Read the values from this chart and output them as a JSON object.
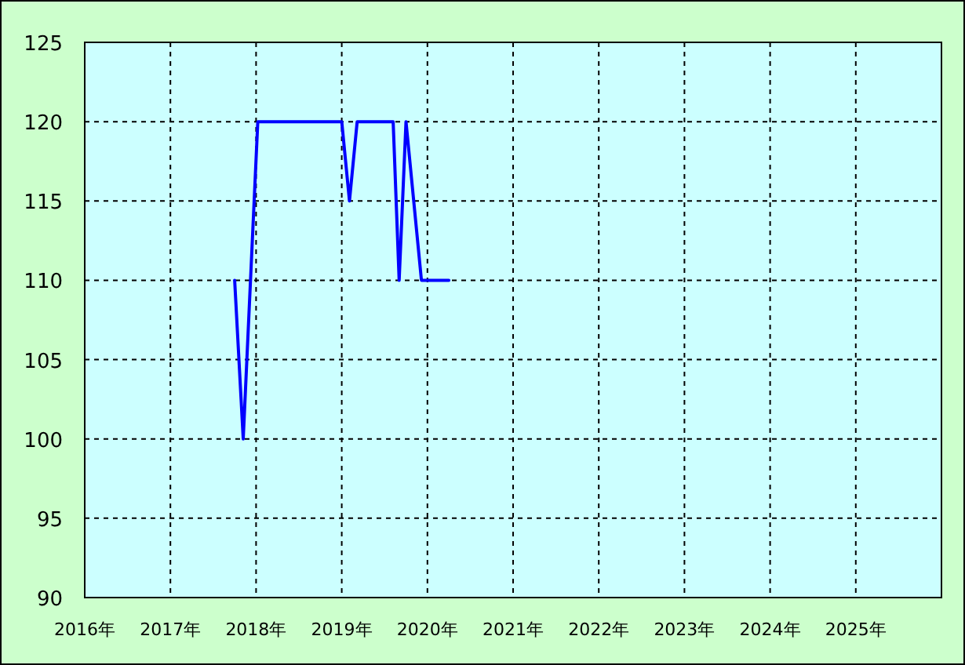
{
  "chart_data": {
    "type": "line",
    "x": [
      2017.75,
      2017.85,
      2018.02,
      2019.0,
      2019.09,
      2019.18,
      2019.6,
      2019.67,
      2019.75,
      2019.93,
      2020.25
    ],
    "series": [
      {
        "color": "#0000ff",
        "values": [
          110,
          100,
          120,
          120,
          115,
          120,
          120,
          110,
          120,
          110,
          110
        ]
      }
    ],
    "xlim": [
      2016,
      2026
    ],
    "xticks": [
      {
        "value": 2016,
        "label": "2016年"
      },
      {
        "value": 2017,
        "label": "2017年"
      },
      {
        "value": 2018,
        "label": "2018年"
      },
      {
        "value": 2019,
        "label": "2019年"
      },
      {
        "value": 2020,
        "label": "2020年"
      },
      {
        "value": 2021,
        "label": "2021年"
      },
      {
        "value": 2022,
        "label": "2022年"
      },
      {
        "value": 2023,
        "label": "2023年"
      },
      {
        "value": 2024,
        "label": "2024年"
      },
      {
        "value": 2025,
        "label": "2025年"
      }
    ],
    "ylim": [
      90,
      125
    ],
    "yticks": [
      90,
      95,
      100,
      105,
      110,
      115,
      120,
      125
    ],
    "grid": true,
    "marker": "none",
    "line_style": "solid"
  }
}
